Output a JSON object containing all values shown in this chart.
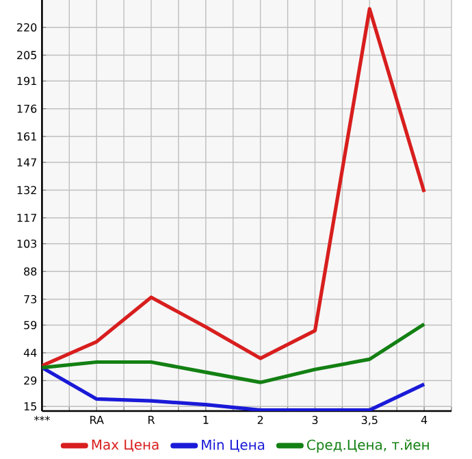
{
  "chart_data": {
    "type": "line",
    "categories": [
      "***",
      "RA",
      "R",
      "1",
      "2",
      "3",
      "3,5",
      "4"
    ],
    "series": [
      {
        "name": "Max Цена",
        "color": "#d81e1e",
        "values": [
          37,
          50,
          74,
          58,
          41,
          56,
          230,
          131
        ]
      },
      {
        "name": "Min Цена",
        "color": "#1a1ad8",
        "values": [
          36,
          19,
          18,
          16,
          13,
          13,
          13,
          27
        ]
      },
      {
        "name": "Сред.Цена, т.йен",
        "color": "#138013",
        "values": [
          36,
          39,
          39,
          33.5,
          28,
          35,
          40.5,
          59.5
        ]
      }
    ],
    "ylim": [
      12.5,
      234.8
    ],
    "yticks": [
      15,
      29,
      44,
      59,
      73,
      88,
      103,
      117,
      132,
      147,
      161,
      176,
      191,
      205,
      220
    ],
    "grid": true,
    "legend": "bottom",
    "marker": "none",
    "line_style": "solid"
  }
}
